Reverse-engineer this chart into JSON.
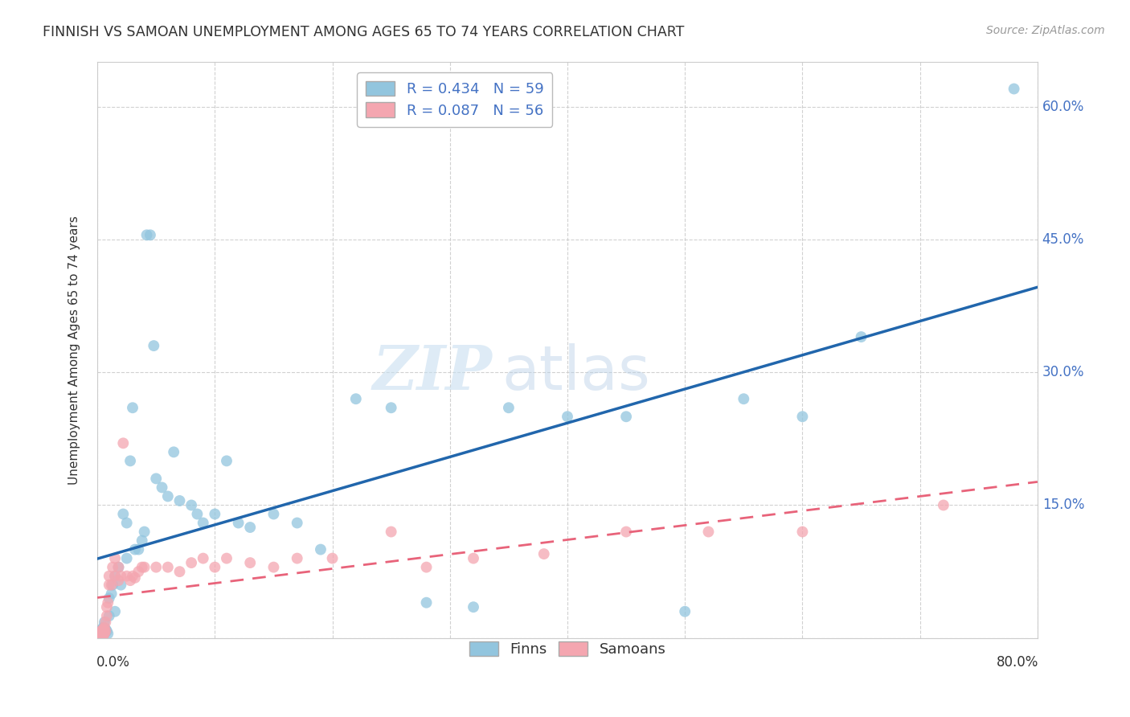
{
  "title": "FINNISH VS SAMOAN UNEMPLOYMENT AMONG AGES 65 TO 74 YEARS CORRELATION CHART",
  "source": "Source: ZipAtlas.com",
  "ylabel": "Unemployment Among Ages 65 to 74 years",
  "legend_finns": "Finns",
  "legend_samoans": "Samoans",
  "finns_R": "R = 0.434",
  "finns_N": "N = 59",
  "samoans_R": "R = 0.087",
  "samoans_N": "N = 56",
  "finns_color": "#92c5de",
  "samoans_color": "#f4a6b0",
  "finns_line_color": "#2166ac",
  "samoans_line_color": "#e8637a",
  "background_color": "#ffffff",
  "grid_color": "#cccccc",
  "xlim": [
    0.0,
    0.8
  ],
  "ylim": [
    0.0,
    0.65
  ],
  "finns_x": [
    0.003,
    0.003,
    0.004,
    0.004,
    0.005,
    0.005,
    0.005,
    0.006,
    0.006,
    0.007,
    0.008,
    0.009,
    0.01,
    0.01,
    0.012,
    0.013,
    0.015,
    0.015,
    0.018,
    0.02,
    0.022,
    0.025,
    0.025,
    0.028,
    0.03,
    0.032,
    0.035,
    0.038,
    0.04,
    0.042,
    0.045,
    0.048,
    0.05,
    0.055,
    0.06,
    0.065,
    0.07,
    0.08,
    0.085,
    0.09,
    0.1,
    0.11,
    0.12,
    0.13,
    0.15,
    0.17,
    0.19,
    0.22,
    0.25,
    0.28,
    0.32,
    0.35,
    0.4,
    0.45,
    0.5,
    0.55,
    0.6,
    0.65,
    0.78
  ],
  "finns_y": [
    0.005,
    0.008,
    0.003,
    0.01,
    0.005,
    0.008,
    0.012,
    0.005,
    0.018,
    0.01,
    0.008,
    0.005,
    0.025,
    0.045,
    0.05,
    0.06,
    0.07,
    0.03,
    0.08,
    0.06,
    0.14,
    0.09,
    0.13,
    0.2,
    0.26,
    0.1,
    0.1,
    0.11,
    0.12,
    0.455,
    0.455,
    0.33,
    0.18,
    0.17,
    0.16,
    0.21,
    0.155,
    0.15,
    0.14,
    0.13,
    0.14,
    0.2,
    0.13,
    0.125,
    0.14,
    0.13,
    0.1,
    0.27,
    0.26,
    0.04,
    0.035,
    0.26,
    0.25,
    0.25,
    0.03,
    0.27,
    0.25,
    0.34,
    0.62
  ],
  "samoans_x": [
    0.003,
    0.003,
    0.003,
    0.003,
    0.004,
    0.004,
    0.004,
    0.004,
    0.005,
    0.005,
    0.005,
    0.005,
    0.006,
    0.006,
    0.006,
    0.007,
    0.007,
    0.008,
    0.008,
    0.009,
    0.01,
    0.01,
    0.012,
    0.013,
    0.015,
    0.015,
    0.018,
    0.018,
    0.02,
    0.022,
    0.025,
    0.028,
    0.03,
    0.032,
    0.035,
    0.038,
    0.04,
    0.05,
    0.06,
    0.07,
    0.08,
    0.09,
    0.1,
    0.11,
    0.13,
    0.15,
    0.17,
    0.2,
    0.25,
    0.28,
    0.32,
    0.38,
    0.45,
    0.52,
    0.6,
    0.72
  ],
  "samoans_y": [
    0.003,
    0.003,
    0.005,
    0.008,
    0.003,
    0.005,
    0.005,
    0.008,
    0.003,
    0.005,
    0.005,
    0.01,
    0.005,
    0.008,
    0.012,
    0.008,
    0.018,
    0.025,
    0.035,
    0.04,
    0.06,
    0.07,
    0.06,
    0.08,
    0.07,
    0.09,
    0.065,
    0.08,
    0.07,
    0.22,
    0.07,
    0.065,
    0.07,
    0.068,
    0.075,
    0.08,
    0.08,
    0.08,
    0.08,
    0.075,
    0.085,
    0.09,
    0.08,
    0.09,
    0.085,
    0.08,
    0.09,
    0.09,
    0.12,
    0.08,
    0.09,
    0.095,
    0.12,
    0.12,
    0.12,
    0.15
  ],
  "watermark_zip": "ZIP",
  "watermark_atlas": "atlas"
}
